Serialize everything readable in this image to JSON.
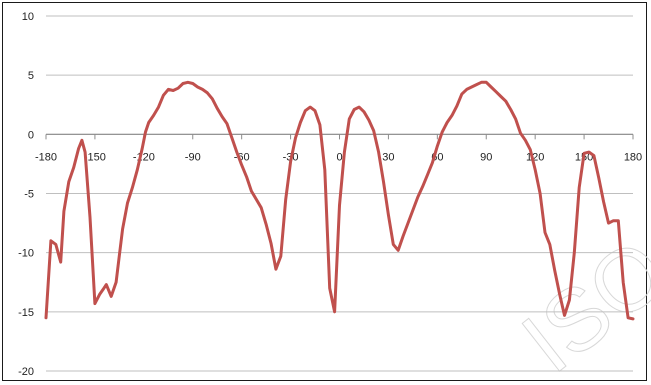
{
  "chart_data": {
    "type": "line",
    "title": "",
    "xlabel": "",
    "ylabel": "",
    "xlim": [
      -180,
      180
    ],
    "ylim": [
      -20,
      10
    ],
    "grid": "horizontal",
    "legend": "none",
    "x_ticks": [
      "-180",
      "-150",
      "-120",
      "-90",
      "-60",
      "-30",
      "0",
      "30",
      "60",
      "90",
      "120",
      "150",
      "180"
    ],
    "y_ticks": [
      "10",
      "5",
      "0",
      "-5",
      "-10",
      "-15",
      "-20"
    ],
    "colors": {
      "line": "#c0504d",
      "grid": "#bfbfbf",
      "axis": "#8c8c8c",
      "frame": "#1a1a1a"
    },
    "series": [
      {
        "x": [
          -180,
          -177,
          -174,
          -171,
          -169,
          -166,
          -163,
          -160,
          -158,
          -156,
          -153,
          -150,
          -147,
          -145,
          -143,
          -140,
          -137,
          -135,
          -133,
          -130,
          -127,
          -124,
          -121,
          -119,
          -117,
          -114,
          -111,
          -108,
          -105,
          -102,
          -99,
          -96,
          -93,
          -90,
          -87,
          -84,
          -81,
          -78,
          -75,
          -72,
          -69,
          -66,
          -63,
          -60,
          -57,
          -54,
          -51,
          -48,
          -45,
          -42,
          -39,
          -36,
          -33,
          -30,
          -27,
          -24,
          -21,
          -18,
          -15,
          -12,
          -9,
          -6,
          -3,
          0,
          3,
          6,
          9,
          12,
          15,
          18,
          21,
          24,
          27,
          30,
          33,
          36,
          39,
          42,
          45,
          48,
          51,
          54,
          57,
          60,
          63,
          66,
          69,
          72,
          75,
          78,
          81,
          84,
          87,
          90,
          93,
          96,
          99,
          102,
          105,
          108,
          111,
          114,
          117,
          120,
          123,
          126,
          129,
          132,
          135,
          138,
          141,
          144,
          147,
          150,
          153,
          156,
          159,
          162,
          165,
          168,
          171,
          174,
          177,
          180
        ],
        "y": [
          -15.5,
          -9.0,
          -9.3,
          -10.8,
          -6.5,
          -4.0,
          -2.8,
          -1.2,
          -0.5,
          -1.5,
          -7.0,
          -14.3,
          -13.5,
          -13.1,
          -12.7,
          -13.7,
          -12.5,
          -10.2,
          -8.0,
          -5.8,
          -4.5,
          -3.0,
          -1.2,
          0.2,
          1.0,
          1.6,
          2.3,
          3.3,
          3.8,
          3.7,
          3.9,
          4.3,
          4.4,
          4.3,
          4.0,
          3.8,
          3.5,
          3.0,
          2.2,
          1.5,
          0.9,
          -0.3,
          -1.5,
          -2.6,
          -3.6,
          -4.8,
          -5.5,
          -6.2,
          -7.6,
          -9.2,
          -11.4,
          -10.3,
          -5.5,
          -2.3,
          -0.3,
          1.0,
          2.0,
          2.3,
          2.0,
          0.8,
          -3.0,
          -13.0,
          -15.0,
          -6.0,
          -1.5,
          1.3,
          2.1,
          2.3,
          1.9,
          1.2,
          0.3,
          -1.5,
          -4.0,
          -6.8,
          -9.3,
          -9.8,
          -8.6,
          -7.5,
          -6.4,
          -5.3,
          -4.4,
          -3.4,
          -2.4,
          -1.0,
          0.2,
          1.0,
          1.6,
          2.4,
          3.4,
          3.8,
          4.0,
          4.2,
          4.4,
          4.4,
          4.0,
          3.6,
          3.2,
          2.8,
          2.1,
          1.3,
          0.1,
          -0.5,
          -1.3,
          -3.0,
          -5.0,
          -8.3,
          -9.3,
          -11.5,
          -13.5,
          -15.3,
          -14.0,
          -10.0,
          -4.5,
          -1.6,
          -1.5,
          -1.8,
          -3.7,
          -5.7,
          -7.5,
          -7.3,
          -7.3,
          -12.5,
          -15.5,
          -15.6
        ]
      }
    ]
  }
}
